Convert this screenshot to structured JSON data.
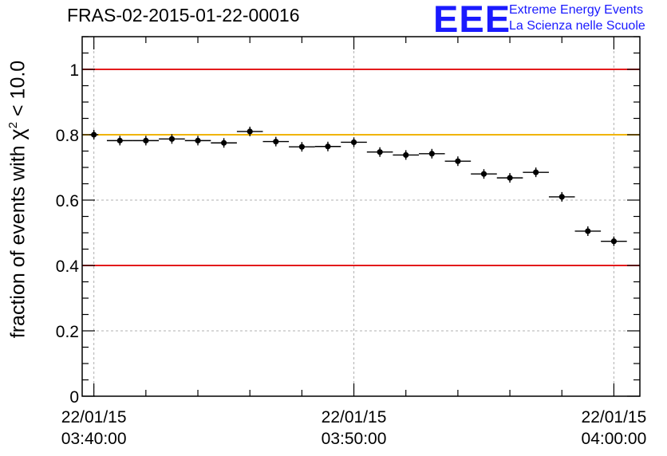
{
  "title": "FRAS-02-2015-01-22-00016",
  "logo": {
    "mark": "EEE",
    "line1": "Extreme Energy Events",
    "line2": "La Scienza nelle Scuole",
    "color": "#1a1aff"
  },
  "chart_data": {
    "type": "scatter",
    "title": "FRAS-02-2015-01-22-00016",
    "ylabel_prefix": "fraction of events with ",
    "ylabel_symbol": "χ",
    "ylabel_sup": "2",
    "ylabel_suffix": " < 10.0",
    "xlim_minutes": [
      -0.45,
      21.0
    ],
    "ylim": [
      0,
      1.1
    ],
    "yticks": [
      0,
      0.2,
      0.4,
      0.6,
      0.8,
      1
    ],
    "ytick_labels": [
      "0",
      "0.2",
      "0.4",
      "0.6",
      "0.8",
      "1"
    ],
    "xticks": [
      {
        "minute": 0,
        "date": "22/01/15",
        "time": "03:40:00"
      },
      {
        "minute": 10,
        "date": "22/01/15",
        "time": "03:50:00"
      },
      {
        "minute": 20,
        "date": "22/01/15",
        "time": "04:00:00"
      }
    ],
    "reference_lines": [
      {
        "y": 1.0,
        "color": "#e31a1c"
      },
      {
        "y": 0.8,
        "color": "#f0b400"
      },
      {
        "y": 0.4,
        "color": "#e31a1c"
      }
    ],
    "grid": true,
    "points": [
      {
        "t": 0.0,
        "y": 0.8,
        "halfwidth": 0.17
      },
      {
        "t": 1.0,
        "y": 0.782,
        "halfwidth": 0.5
      },
      {
        "t": 2.0,
        "y": 0.782,
        "halfwidth": 0.5
      },
      {
        "t": 3.0,
        "y": 0.787,
        "halfwidth": 0.5
      },
      {
        "t": 4.0,
        "y": 0.782,
        "halfwidth": 0.5
      },
      {
        "t": 5.0,
        "y": 0.775,
        "halfwidth": 0.5
      },
      {
        "t": 6.0,
        "y": 0.81,
        "halfwidth": 0.5
      },
      {
        "t": 7.0,
        "y": 0.779,
        "halfwidth": 0.5
      },
      {
        "t": 8.0,
        "y": 0.763,
        "halfwidth": 0.5
      },
      {
        "t": 9.0,
        "y": 0.764,
        "halfwidth": 0.5
      },
      {
        "t": 10.0,
        "y": 0.777,
        "halfwidth": 0.5
      },
      {
        "t": 11.0,
        "y": 0.747,
        "halfwidth": 0.5
      },
      {
        "t": 12.0,
        "y": 0.738,
        "halfwidth": 0.5
      },
      {
        "t": 13.0,
        "y": 0.742,
        "halfwidth": 0.5
      },
      {
        "t": 14.0,
        "y": 0.719,
        "halfwidth": 0.5
      },
      {
        "t": 15.0,
        "y": 0.68,
        "halfwidth": 0.5
      },
      {
        "t": 16.0,
        "y": 0.668,
        "halfwidth": 0.5
      },
      {
        "t": 17.0,
        "y": 0.685,
        "halfwidth": 0.5
      },
      {
        "t": 18.0,
        "y": 0.61,
        "halfwidth": 0.5
      },
      {
        "t": 19.0,
        "y": 0.505,
        "halfwidth": 0.5
      },
      {
        "t": 20.0,
        "y": 0.474,
        "halfwidth": 0.5
      }
    ]
  }
}
